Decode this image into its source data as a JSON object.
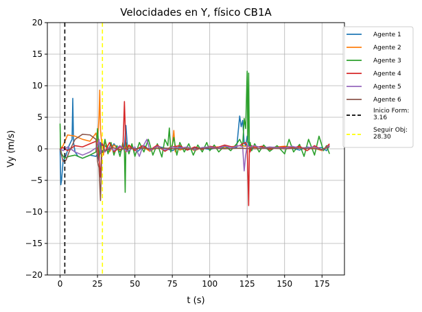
{
  "chart_data": {
    "type": "line",
    "title": "Velocidades en Y, físico CB1A",
    "xlabel": "t (s)",
    "ylabel": "Vy (m/s)",
    "xlim": [
      -8.5,
      190
    ],
    "ylim": [
      -20,
      20
    ],
    "xticks": [
      0,
      25,
      50,
      75,
      100,
      125,
      150,
      175
    ],
    "yticks": [
      -20,
      -15,
      -10,
      -5,
      0,
      5,
      10,
      15,
      20
    ],
    "xtick_labels": [
      "0",
      "25",
      "50",
      "75",
      "100",
      "125",
      "150",
      "175"
    ],
    "ytick_labels": [
      "−20",
      "−15",
      "−10",
      "−5",
      "0",
      "5",
      "10",
      "15",
      "20"
    ],
    "grid": true,
    "legend_position": "outside-right-top",
    "series": [
      {
        "name": "Agente 1",
        "color": "#1f77b4",
        "x": [
          0,
          0.5,
          1,
          2,
          4,
          6,
          8,
          8.5,
          9,
          10,
          12,
          15,
          20,
          24,
          25,
          26,
          27,
          28,
          30,
          33,
          36,
          40,
          43,
          44,
          45,
          46,
          48,
          52,
          56,
          60,
          65,
          70,
          75,
          80,
          85,
          90,
          95,
          100,
          105,
          110,
          115,
          118,
          120,
          121,
          122,
          123,
          124,
          125,
          126,
          127,
          130,
          135,
          140,
          145,
          150,
          155,
          160,
          165,
          170,
          175,
          178,
          180
        ],
        "y": [
          0,
          -5.7,
          -5,
          -2,
          -1,
          0.5,
          1.5,
          8,
          1,
          -0.5,
          -1.2,
          -1.5,
          -1,
          -1.2,
          -0.8,
          -2,
          1,
          -0.5,
          0.5,
          -0.3,
          0.8,
          -0.5,
          0.3,
          3.7,
          0.2,
          -0.5,
          0.3,
          -0.4,
          0.5,
          -0.2,
          0.4,
          0.1,
          -0.3,
          0.3,
          -0.2,
          0.2,
          0.1,
          -0.1,
          0.2,
          0.1,
          0.3,
          0.2,
          5.2,
          3.5,
          4.5,
          1,
          0.5,
          2,
          0.5,
          0,
          0.3,
          0.2,
          -0.1,
          0.3,
          0.2,
          0.1,
          -0.2,
          0.3,
          0.1,
          0.2,
          -0.3,
          0.5
        ]
      },
      {
        "name": "Agente 2",
        "color": "#ff7f0e",
        "x": [
          0,
          2,
          5,
          10,
          15,
          20,
          24,
          25,
          26,
          26.5,
          27,
          28,
          29,
          30,
          33,
          36,
          40,
          45,
          50,
          55,
          60,
          65,
          70,
          75,
          76,
          77,
          78,
          80,
          85,
          90,
          95,
          100,
          105,
          110,
          120,
          130,
          140,
          150,
          160,
          170,
          175,
          180
        ],
        "y": [
          0,
          0.5,
          2.2,
          2,
          1.5,
          1.2,
          2.5,
          1,
          5,
          9.3,
          3,
          0.5,
          -1,
          1.2,
          -0.5,
          0.6,
          -0.3,
          0.5,
          -0.2,
          0.4,
          -0.4,
          0.3,
          -0.3,
          0.5,
          2.9,
          -0.5,
          0.3,
          -0.2,
          0.2,
          -0.3,
          0.2,
          0.1,
          0.3,
          0.2,
          0.5,
          0.3,
          0.2,
          0.4,
          0.2,
          0.1,
          -0.3,
          0.6
        ]
      },
      {
        "name": "Agente 3",
        "color": "#2ca02c",
        "x": [
          0,
          0.3,
          1,
          3,
          6,
          10,
          15,
          20,
          24,
          25,
          25.5,
          26,
          27,
          28,
          30,
          32,
          34,
          36,
          38,
          40,
          42,
          43,
          43.5,
          44,
          46,
          48,
          50,
          53,
          56,
          59,
          62,
          65,
          68,
          70,
          72,
          73,
          74,
          76,
          78,
          80,
          83,
          86,
          89,
          92,
          95,
          98,
          100,
          103,
          106,
          110,
          114,
          118,
          120,
          122,
          123,
          124,
          125,
          125.5,
          126,
          126.5,
          127,
          128,
          130,
          133,
          136,
          140,
          145,
          150,
          153,
          156,
          160,
          163,
          166,
          170,
          173,
          176,
          178,
          180
        ],
        "y": [
          4,
          0,
          -0.8,
          -1.5,
          -1.2,
          -1,
          -1.5,
          -1,
          -0.5,
          3.2,
          1.5,
          -1.5,
          0.5,
          -1,
          1.5,
          -0.8,
          1,
          -1,
          0.5,
          -1.2,
          1,
          -0.5,
          -6.9,
          1,
          -0.8,
          0.8,
          -1.2,
          1,
          -0.5,
          1.5,
          -1,
          0.8,
          -1.3,
          1.5,
          0.5,
          3.3,
          -0.5,
          1.8,
          -1,
          1,
          -0.5,
          0.8,
          -1,
          0.6,
          -0.5,
          1,
          -0.3,
          0.6,
          -0.5,
          0.5,
          -0.3,
          0.8,
          1.5,
          0.5,
          4.8,
          3.2,
          12.3,
          1,
          12,
          -0.5,
          1,
          -0.3,
          0.8,
          -0.5,
          0.6,
          -0.4,
          0.5,
          -0.8,
          1.5,
          -0.5,
          0.7,
          -1.2,
          1.5,
          -1,
          2,
          -0.3,
          0.5,
          -0.8
        ]
      },
      {
        "name": "Agente 4",
        "color": "#d62728",
        "x": [
          0,
          2,
          5,
          10,
          15,
          20,
          24,
          25,
          26,
          27,
          28,
          30,
          33,
          36,
          40,
          42,
          43,
          44,
          46,
          50,
          55,
          60,
          65,
          70,
          75,
          80,
          85,
          90,
          95,
          100,
          105,
          110,
          115,
          120,
          122,
          124,
          125,
          126,
          126.5,
          127,
          128,
          130,
          135,
          140,
          145,
          150,
          155,
          160,
          165,
          170,
          175,
          178,
          180
        ],
        "y": [
          0,
          0.2,
          -0.3,
          0.5,
          0.3,
          0.8,
          1.2,
          0.5,
          -1.5,
          -4.5,
          1,
          -0.5,
          1,
          -0.5,
          0.3,
          0.1,
          7.5,
          -0.5,
          0.6,
          -0.3,
          0.5,
          -0.2,
          0.6,
          -0.4,
          0.3,
          0.5,
          -0.2,
          0.3,
          -0.1,
          0.4,
          0.2,
          0.6,
          0.3,
          0.5,
          0.8,
          1,
          0.5,
          -9,
          0.3,
          -0.5,
          0.5,
          0.2,
          0.4,
          -0.1,
          0.2,
          0.3,
          0.1,
          0.4,
          -0.3,
          0.5,
          -0.2,
          0.3,
          0.8
        ]
      },
      {
        "name": "Agente 5",
        "color": "#9467bd",
        "x": [
          0,
          2,
          5,
          10,
          15,
          20,
          25,
          26,
          27,
          28,
          30,
          33,
          36,
          40,
          45,
          50,
          53,
          55,
          58,
          60,
          65,
          70,
          75,
          80,
          85,
          90,
          95,
          100,
          105,
          110,
          115,
          120,
          122,
          123,
          124,
          125,
          127,
          130,
          135,
          140,
          145,
          150,
          155,
          160,
          165,
          170,
          175,
          180
        ],
        "y": [
          0,
          -0.3,
          0.3,
          -0.5,
          -1,
          -0.5,
          0.3,
          1.5,
          -0.8,
          0.5,
          -0.5,
          0.3,
          -0.3,
          0.5,
          -0.4,
          0.3,
          -1.2,
          0.2,
          1.5,
          -0.3,
          0.4,
          -0.2,
          0.3,
          0.1,
          0.3,
          -0.2,
          0.2,
          0.3,
          0.1,
          0.4,
          0.2,
          0.5,
          0.3,
          -3.5,
          -1,
          0.5,
          0.3,
          0.5,
          0.1,
          0.3,
          0.2,
          0.1,
          0.4,
          0.1,
          0.2,
          0.3,
          -0.2,
          0.5
        ]
      },
      {
        "name": "Agente 6",
        "color": "#8c564b",
        "x": [
          0,
          2,
          4,
          6,
          10,
          15,
          20,
          24,
          25,
          26,
          27,
          28,
          30,
          35,
          40,
          45,
          50,
          55,
          60,
          70,
          80,
          90,
          100,
          110,
          120,
          130,
          140,
          150,
          160,
          170,
          175,
          180
        ],
        "y": [
          0,
          -2,
          -1.8,
          -0.5,
          1.5,
          2.3,
          2.2,
          1.5,
          -2,
          -3,
          -8.2,
          0.5,
          -0.3,
          0.2,
          -0.1,
          0.1,
          0,
          0.1,
          0,
          0.1,
          0,
          0,
          0.1,
          0,
          0.1,
          0,
          0.1,
          0,
          0.1,
          0,
          -0.1,
          0.3
        ]
      }
    ],
    "vlines": [
      {
        "name": "Inicio Form:\n3.16",
        "x": 3.16,
        "color": "#000000",
        "dash": "6,4"
      },
      {
        "name": "Seguir Obj:\n28.30",
        "x": 28.3,
        "color": "#ffff00",
        "dash": "6,4"
      }
    ]
  }
}
